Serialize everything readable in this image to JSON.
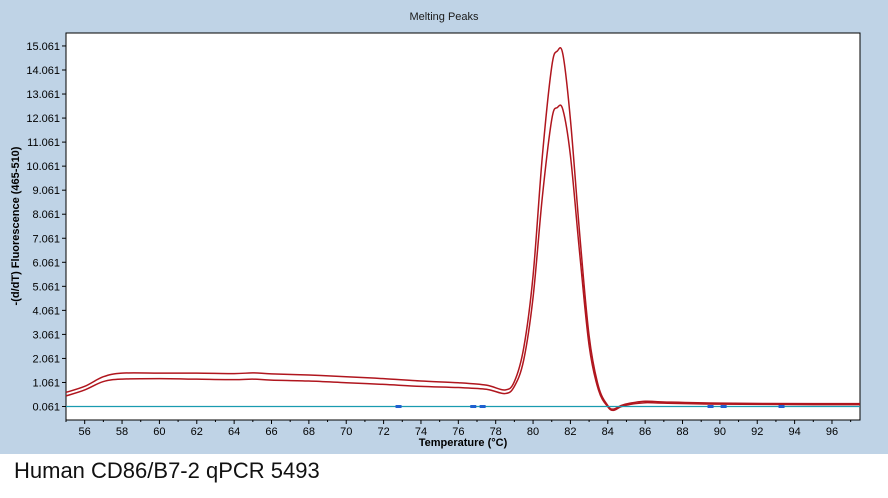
{
  "caption": "Human CD86/B7-2 qPCR 5493",
  "chart_data": {
    "type": "line",
    "title": "Melting Peaks",
    "xlabel": "Temperature (°C)",
    "ylabel": "-(d/dT) Fluorescence (465-510)",
    "xlim": [
      55,
      97.5
    ],
    "ylim": [
      -0.5,
      15.6
    ],
    "xticks": [
      56,
      58,
      60,
      62,
      64,
      66,
      68,
      70,
      72,
      74,
      76,
      78,
      80,
      82,
      84,
      86,
      88,
      90,
      92,
      94,
      96
    ],
    "yticks": [
      0.061,
      1.061,
      2.061,
      3.061,
      4.061,
      5.061,
      6.061,
      7.061,
      8.061,
      9.061,
      10.061,
      11.061,
      12.061,
      13.061,
      14.061,
      15.061
    ],
    "grid": false,
    "colors": {
      "sample_curves": "#b0161e",
      "baseline": "#1a9bb0",
      "markers": "#1e5fd0",
      "panel_bg": "#bfd3e6"
    },
    "series": [
      {
        "x": [
          55,
          56,
          57,
          58,
          60,
          62,
          64,
          65,
          66,
          68,
          70,
          72,
          74,
          76,
          77.5,
          78.5,
          79,
          79.5,
          80,
          80.5,
          81,
          81.3,
          81.6,
          82,
          82.5,
          83,
          83.5,
          84,
          84.3,
          84.7,
          85.2,
          86,
          87,
          90,
          95,
          97.5
        ],
        "y": [
          0.65,
          0.9,
          1.3,
          1.45,
          1.45,
          1.45,
          1.43,
          1.46,
          1.42,
          1.37,
          1.3,
          1.22,
          1.12,
          1.05,
          0.95,
          0.75,
          1.1,
          2.5,
          5.5,
          10.5,
          14.2,
          14.85,
          14.7,
          12.0,
          7.2,
          3.0,
          0.9,
          0.1,
          -0.05,
          0.1,
          0.2,
          0.28,
          0.25,
          0.2,
          0.18,
          0.18
        ]
      },
      {
        "x": [
          55,
          56,
          57,
          58,
          60,
          62,
          64,
          65,
          66,
          68,
          70,
          72,
          74,
          76,
          77.5,
          78.5,
          79,
          79.5,
          80,
          80.5,
          81,
          81.3,
          81.6,
          82,
          82.5,
          83,
          83.5,
          84,
          84.3,
          84.7,
          85.2,
          86,
          87,
          90,
          95,
          97.5
        ],
        "y": [
          0.5,
          0.75,
          1.1,
          1.2,
          1.22,
          1.2,
          1.18,
          1.2,
          1.16,
          1.12,
          1.05,
          0.98,
          0.9,
          0.85,
          0.78,
          0.6,
          0.9,
          2.0,
          4.6,
          8.8,
          12.0,
          12.5,
          12.4,
          10.5,
          6.4,
          2.6,
          0.75,
          0.05,
          -0.1,
          0.05,
          0.15,
          0.22,
          0.2,
          0.16,
          0.14,
          0.14
        ]
      },
      {
        "x": [
          55,
          97.5
        ],
        "y": [
          0.061,
          0.061
        ]
      }
    ],
    "markers_x": [
      72.8,
      76.8,
      77.3,
      89.5,
      90.2,
      93.3
    ]
  }
}
